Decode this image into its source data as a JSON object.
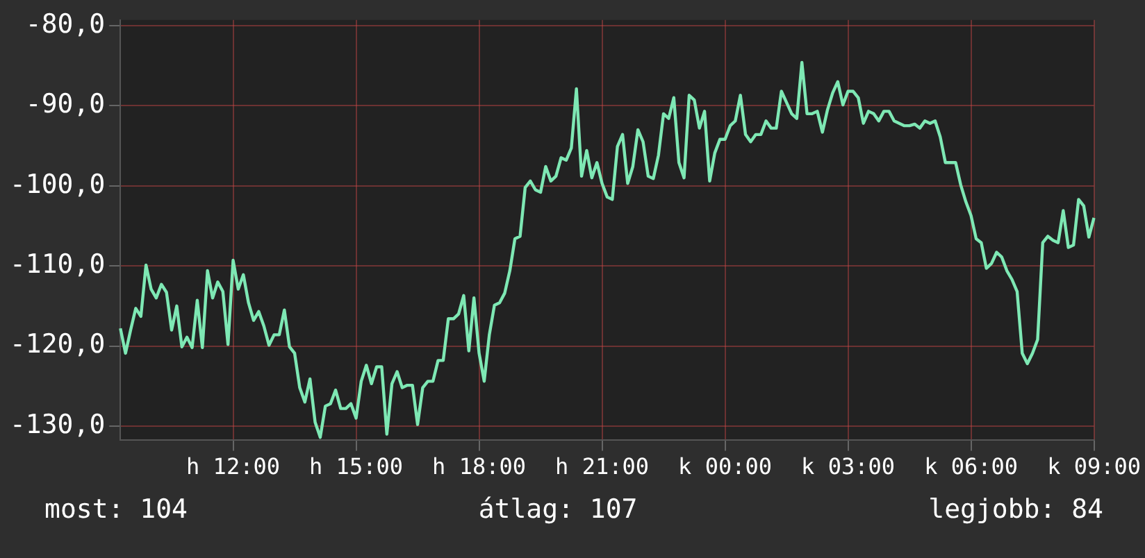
{
  "chart_data": {
    "type": "line",
    "ylim": [
      -131.7,
      -79.3
    ],
    "categories": [
      null,
      null,
      null,
      null,
      null,
      null,
      null,
      null,
      null,
      null,
      null,
      null,
      null,
      null,
      null,
      null,
      null,
      null,
      null,
      null,
      null,
      null,
      "h 12:00",
      null,
      null,
      null,
      null,
      null,
      null,
      null,
      null,
      null,
      null,
      null,
      null,
      null,
      null,
      null,
      null,
      null,
      null,
      null,
      null,
      null,
      null,
      null,
      "h 15:00",
      null,
      null,
      null,
      null,
      null,
      null,
      null,
      null,
      null,
      null,
      null,
      null,
      null,
      null,
      null,
      null,
      null,
      null,
      null,
      null,
      null,
      null,
      null,
      "h 18:00",
      null,
      null,
      null,
      null,
      null,
      null,
      null,
      null,
      null,
      null,
      null,
      null,
      null,
      null,
      null,
      null,
      null,
      null,
      null,
      null,
      null,
      null,
      null,
      "h 21:00",
      null,
      null,
      null,
      null,
      null,
      null,
      null,
      null,
      null,
      null,
      null,
      null,
      null,
      null,
      null,
      null,
      null,
      null,
      null,
      null,
      null,
      null,
      null,
      "k 00:00",
      null,
      null,
      null,
      null,
      null,
      null,
      null,
      null,
      null,
      null,
      null,
      null,
      null,
      null,
      null,
      null,
      null,
      null,
      null,
      null,
      null,
      null,
      null,
      "k 03:00",
      null,
      null,
      null,
      null,
      null,
      null,
      null,
      null,
      null,
      null,
      null,
      null,
      null,
      null,
      null,
      null,
      null,
      null,
      null,
      null,
      null,
      null,
      null,
      "k 06:00",
      null,
      null,
      null,
      null,
      null,
      null,
      null,
      null,
      null,
      null,
      null,
      null,
      null,
      null,
      null,
      null,
      null,
      null,
      null,
      null,
      null,
      null,
      null,
      "k 09:00"
    ],
    "yticks": [
      {
        "value": -130,
        "label": "-130,0"
      },
      {
        "value": -120,
        "label": "-120,0"
      },
      {
        "value": -110,
        "label": "-110,0"
      },
      {
        "value": -100,
        "label": "-100,0"
      },
      {
        "value": -90,
        "label": "-90,0"
      },
      {
        "value": -80,
        "label": "-80,0"
      }
    ],
    "grid": true,
    "marker": "none",
    "line_style": "solid",
    "annotations": [
      "most: 104",
      "átlag: 107",
      "legjobb: 84"
    ],
    "series": [
      {
        "color": "#7ee8b4",
        "values": [
          -117.8,
          -120.9,
          -118.0,
          -115.3,
          -116.3,
          -109.9,
          -112.9,
          -114.0,
          -112.3,
          -113.3,
          -118.0,
          -115.0,
          -120.1,
          -118.9,
          -120.2,
          -114.3,
          -120.2,
          -110.6,
          -114.0,
          -112.0,
          -113.2,
          -119.8,
          -109.3,
          -112.9,
          -111.1,
          -114.6,
          -116.8,
          -115.7,
          -117.5,
          -119.9,
          -118.6,
          -118.6,
          -115.5,
          -120.1,
          -120.9,
          -125.2,
          -127.0,
          -124.1,
          -129.5,
          -131.4,
          -127.5,
          -127.2,
          -125.5,
          -127.8,
          -127.8,
          -127.2,
          -129.0,
          -124.4,
          -122.4,
          -124.7,
          -122.6,
          -122.6,
          -131.0,
          -124.7,
          -123.2,
          -125.2,
          -124.9,
          -124.9,
          -129.8,
          -125.2,
          -124.4,
          -124.4,
          -121.8,
          -121.8,
          -116.6,
          -116.6,
          -116.0,
          -113.7,
          -120.6,
          -114.0,
          -120.9,
          -124.4,
          -118.6,
          -114.9,
          -114.6,
          -113.4,
          -110.6,
          -106.6,
          -106.3,
          -100.2,
          -99.4,
          -100.5,
          -100.8,
          -97.6,
          -99.4,
          -98.8,
          -96.5,
          -96.8,
          -95.3,
          -87.9,
          -98.8,
          -95.6,
          -99.0,
          -97.1,
          -99.7,
          -101.4,
          -101.7,
          -95.1,
          -93.6,
          -99.7,
          -97.6,
          -93.0,
          -94.5,
          -98.8,
          -99.1,
          -96.2,
          -91.0,
          -91.6,
          -89.0,
          -97.1,
          -99.0,
          -88.7,
          -89.3,
          -92.8,
          -90.7,
          -99.4,
          -95.9,
          -94.2,
          -94.2,
          -92.5,
          -91.9,
          -88.7,
          -93.6,
          -94.5,
          -93.6,
          -93.6,
          -91.9,
          -92.8,
          -92.8,
          -88.2,
          -89.6,
          -91.0,
          -91.6,
          -84.6,
          -91.0,
          -91.0,
          -90.7,
          -93.3,
          -90.5,
          -88.4,
          -87.0,
          -89.9,
          -88.2,
          -88.2,
          -89.0,
          -92.2,
          -90.7,
          -91.0,
          -91.9,
          -90.7,
          -90.7,
          -91.9,
          -92.2,
          -92.5,
          -92.5,
          -92.3,
          -92.8,
          -91.9,
          -92.2,
          -91.9,
          -93.9,
          -97.1,
          -97.1,
          -97.1,
          -99.9,
          -102.0,
          -103.7,
          -106.6,
          -107.1,
          -110.3,
          -109.7,
          -108.3,
          -108.9,
          -110.6,
          -111.7,
          -113.2,
          -120.9,
          -122.2,
          -120.9,
          -119.2,
          -107.1,
          -106.3,
          -106.8,
          -107.1,
          -103.1,
          -107.7,
          -107.4,
          -101.7,
          -102.5,
          -106.4,
          -104.0
        ]
      }
    ]
  }
}
